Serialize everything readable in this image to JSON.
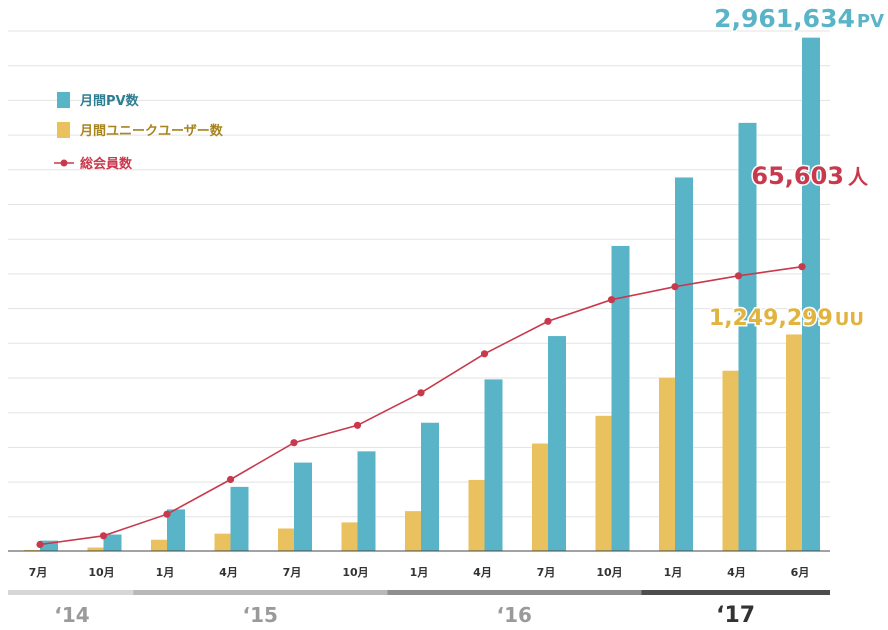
{
  "colors": {
    "pv": "#5ab4c8",
    "uu": "#e9c25f",
    "members": "#c8394d",
    "grid": "#e3e3e3",
    "year_bars": [
      "#d6d6d6",
      "#b8b8b8",
      "#8f8f8f",
      "#4d4d4d"
    ]
  },
  "legend": {
    "pv_label": "月間PV数",
    "uu_label": "月間ユニークユーザー数",
    "members_label": "総会員数"
  },
  "callouts": {
    "pv_value": "2,961,634",
    "pv_unit": "PV",
    "members_value": "65,603",
    "members_unit": "人",
    "uu_value": "1,249,299",
    "uu_unit": "UU"
  },
  "chart_data": {
    "type": "bar",
    "categories": [
      "7月",
      "10月",
      "1月",
      "4月",
      "7月",
      "10月",
      "1月",
      "4月",
      "7月",
      "10月",
      "1月",
      "4月",
      "6月"
    ],
    "years": [
      {
        "label": "‘14",
        "start": 0,
        "end": 1
      },
      {
        "label": "‘15",
        "start": 2,
        "end": 5
      },
      {
        "label": "‘16",
        "start": 6,
        "end": 9
      },
      {
        "label": "‘17",
        "start": 10,
        "end": 12
      }
    ],
    "series": [
      {
        "name": "月間PV数",
        "kind": "bar",
        "values": [
          60000,
          95000,
          240000,
          370000,
          510000,
          575000,
          740000,
          990000,
          1240000,
          1760000,
          2155000,
          2470000,
          2961634
        ]
      },
      {
        "name": "月間ユニークユーザー数",
        "kind": "bar",
        "values": [
          6000,
          20000,
          65000,
          100000,
          130000,
          165000,
          230000,
          410000,
          620000,
          780000,
          1000000,
          1040000,
          1249299
        ]
      },
      {
        "name": "総会員数",
        "kind": "line",
        "axis": "secondary",
        "values": [
          1500,
          3500,
          8500,
          16500,
          25000,
          29000,
          36500,
          45500,
          53000,
          58000,
          61000,
          63500,
          65603
        ]
      }
    ],
    "ylim": [
      0,
      3000000
    ],
    "y2lim": [
      0,
      120000
    ],
    "grid": true,
    "legend_position": "top-left"
  }
}
